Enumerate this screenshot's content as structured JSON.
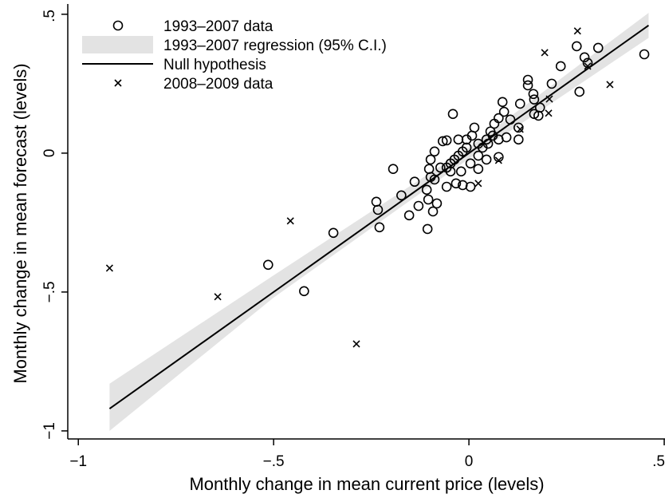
{
  "chart_data": {
    "type": "scatter",
    "x_label": "Monthly change in mean current price (levels)",
    "y_label": "Monthly change in mean forecast (levels)",
    "xlim": [
      -1.027,
      0.502
    ],
    "ylim": [
      -1.029,
      0.537
    ],
    "xticks": [
      {
        "value": -1,
        "label": "−1"
      },
      {
        "value": -0.5,
        "label": "−.5"
      },
      0,
      {
        "value": 0.5,
        "label": ".5"
      }
    ],
    "yticks": [
      {
        "value": -1,
        "label": "−1"
      },
      {
        "value": -0.5,
        "label": "−.5"
      },
      0,
      {
        "value": 0.5,
        "label": ".5"
      }
    ],
    "legend": "top-left",
    "series": [
      {
        "name": "1993–2007 data",
        "type": "scatter",
        "marker": "circle",
        "color": "#000000",
        "x": [
          0.449,
          0.331,
          0.276,
          0.296,
          0.304,
          0.283,
          0.235,
          0.212,
          0.182,
          0.178,
          0.167,
          0.151,
          0.151,
          0.165,
          0.167,
          0.131,
          0.127,
          0.127,
          0.086,
          0.09,
          0.106,
          0.076,
          0.065,
          0.055,
          0.045,
          0.024,
          0.014,
          0.008,
          -0.006,
          -0.016,
          -0.027,
          -0.037,
          -0.047,
          -0.057,
          -0.041,
          -0.067,
          -0.088,
          -0.098,
          -0.102,
          -0.098,
          -0.108,
          -0.088,
          -0.082,
          -0.092,
          -0.104,
          -0.106,
          -0.139,
          -0.173,
          -0.153,
          -0.129,
          -0.194,
          -0.237,
          -0.233,
          -0.229,
          -0.347,
          -0.514,
          -0.422,
          -0.057,
          -0.016,
          0.004,
          -0.033,
          -0.057,
          -0.027,
          -0.006,
          0.024,
          0.045,
          0.076,
          0.076,
          0.035,
          0.004,
          -0.02,
          -0.047,
          -0.073,
          0.024,
          0.049,
          0.061,
          0.096
        ],
        "y": [
          0.356,
          0.379,
          0.385,
          0.345,
          0.325,
          0.221,
          0.313,
          0.25,
          0.164,
          0.135,
          0.141,
          0.264,
          0.244,
          0.213,
          0.193,
          0.178,
          0.092,
          0.049,
          0.184,
          0.149,
          0.121,
          0.126,
          0.106,
          0.078,
          0.049,
          0.034,
          0.092,
          0.063,
          0.02,
          0.006,
          -0.009,
          -0.023,
          -0.037,
          -0.052,
          0.141,
          0.043,
          0.006,
          -0.023,
          -0.057,
          -0.086,
          -0.132,
          -0.095,
          -0.181,
          -0.21,
          -0.167,
          -0.273,
          -0.103,
          -0.152,
          -0.224,
          -0.19,
          -0.057,
          -0.175,
          -0.204,
          -0.267,
          -0.287,
          -0.402,
          -0.497,
          -0.121,
          -0.115,
          -0.121,
          -0.109,
          0.046,
          0.049,
          0.049,
          -0.009,
          -0.023,
          -0.014,
          0.049,
          0.02,
          -0.037,
          -0.066,
          -0.066,
          -0.052,
          -0.057,
          0.034,
          0.063,
          0.057
        ]
      },
      {
        "name": "1993–2007 regression (95% C.I.)",
        "type": "band",
        "color": "#e3e3e3",
        "x": [
          -0.92,
          -0.5,
          0,
          0.46
        ],
        "lower": [
          -1.0,
          -0.52,
          -0.02,
          0.415
        ],
        "upper": [
          -0.83,
          -0.44,
          0.02,
          0.505
        ]
      },
      {
        "name": "Null hypothesis",
        "type": "line",
        "color": "#000000",
        "x": [
          -0.92,
          0.46
        ],
        "y": [
          -0.92,
          0.46
        ]
      },
      {
        "name": "2008–2009 data",
        "type": "scatter",
        "marker": "x",
        "color": "#000000",
        "x": [
          -0.92,
          -0.643,
          -0.457,
          -0.288,
          0.278,
          0.194,
          0.361,
          0.204,
          0.206,
          0.304,
          0.131,
          0.076,
          0.024
        ],
        "y": [
          -0.414,
          -0.517,
          -0.244,
          -0.687,
          0.44,
          0.362,
          0.247,
          0.144,
          0.195,
          0.313,
          0.086,
          -0.026,
          -0.109
        ]
      }
    ]
  }
}
